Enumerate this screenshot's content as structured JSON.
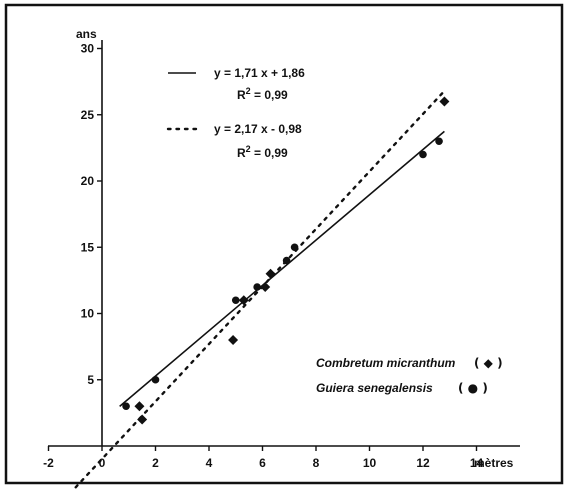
{
  "chart_data": {
    "type": "scatter",
    "xlabel": "mètres",
    "ylabel": "ans",
    "xlim": [
      -2,
      15
    ],
    "ylim": [
      0,
      31
    ],
    "x_ticks": [
      -2,
      0,
      2,
      4,
      6,
      8,
      10,
      12,
      14
    ],
    "y_ticks": [
      5,
      10,
      15,
      20,
      25,
      30
    ],
    "grid": false,
    "legend_position": "bottom-right",
    "series": [
      {
        "name": "Combretum micranthum",
        "marker": "diamond",
        "symbol_label": "◆",
        "points": [
          [
            1.4,
            3
          ],
          [
            1.5,
            2
          ],
          [
            4.9,
            8
          ],
          [
            5.3,
            11
          ],
          [
            6.1,
            12
          ],
          [
            6.3,
            13
          ],
          [
            12.8,
            26
          ]
        ],
        "fit": {
          "slope": 1.71,
          "intercept": 1.86,
          "style": "solid",
          "x_range": [
            0.66,
            12.8
          ]
        },
        "equation": "y = 1,71 x + 1,86",
        "r2_prefix": "R",
        "r2_sup": "2",
        "r2_value": " = 0,99"
      },
      {
        "name": "Guiera senegalensis",
        "marker": "circle",
        "symbol_label": "●",
        "points": [
          [
            0.9,
            3
          ],
          [
            2.0,
            5
          ],
          [
            5.0,
            11
          ],
          [
            5.8,
            12
          ],
          [
            6.9,
            14
          ],
          [
            7.2,
            15
          ],
          [
            12.0,
            22
          ],
          [
            12.6,
            23
          ]
        ],
        "fit": {
          "slope": 2.17,
          "intercept": -0.98,
          "style": "dotted",
          "x_range": [
            -1.2,
            12.8
          ]
        },
        "equation": "y = 2,17 x - 0,98",
        "r2_prefix": "R",
        "r2_sup": "2",
        "r2_value": " = 0,99"
      }
    ]
  }
}
